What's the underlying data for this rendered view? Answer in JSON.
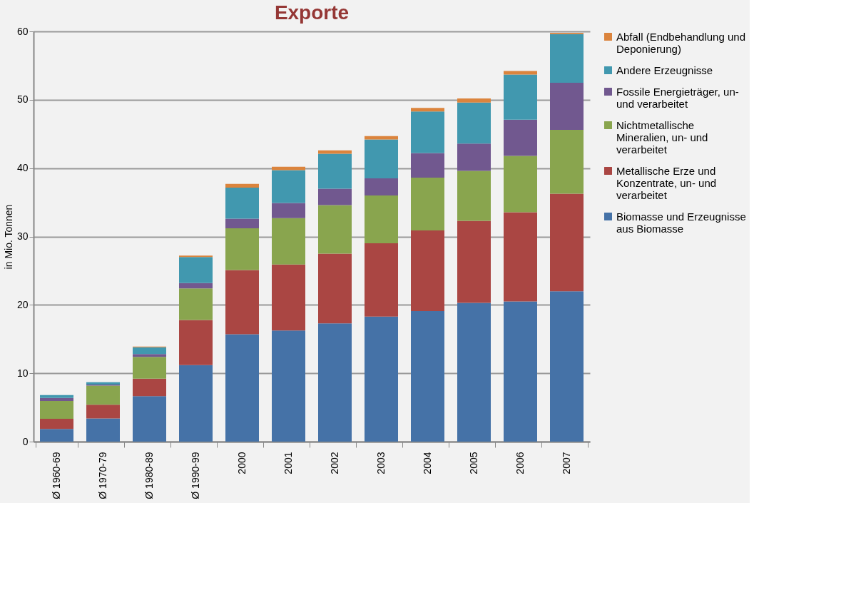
{
  "chart_data": {
    "type": "bar",
    "title": "Exporte",
    "ylabel": "in Mio. Tonnen",
    "stacked": true,
    "legend": "right",
    "grid": "y",
    "categories": [
      "Ø 1960-69",
      "Ø 1970-79",
      "Ø 1980-89",
      "Ø 1990-99",
      "2000",
      "2001",
      "2002",
      "2003",
      "2004",
      "2005",
      "2006",
      "2007"
    ],
    "ylim": [
      0,
      60
    ],
    "yticks": [
      0,
      10,
      20,
      30,
      40,
      50,
      60
    ],
    "series": [
      {
        "name": "Biomasse und Erzeugnisse aus Biomasse",
        "color": "#4572a7",
        "values": [
          1.85,
          3.4,
          6.65,
          11.2,
          15.7,
          16.25,
          17.3,
          18.3,
          19.1,
          20.3,
          20.5,
          22.0
        ]
      },
      {
        "name": "Metallische Erze und Konzentrate, un- und verarbeitet",
        "color": "#aa4643",
        "values": [
          1.5,
          2.0,
          2.55,
          6.6,
          9.4,
          9.65,
          10.2,
          10.7,
          11.8,
          12.0,
          13.05,
          14.25
        ]
      },
      {
        "name": "Nichtmetallische Mineralien, un- und verarbeitet",
        "color": "#89a54e",
        "values": [
          2.6,
          2.8,
          3.2,
          4.6,
          6.1,
          6.8,
          7.1,
          7.0,
          7.7,
          7.3,
          8.25,
          9.35
        ]
      },
      {
        "name": "Fossile Energieträger, un- und verarbeitet",
        "color": "#71588f",
        "values": [
          0.45,
          0.15,
          0.4,
          0.8,
          1.4,
          2.2,
          2.4,
          2.5,
          3.6,
          4.0,
          5.3,
          6.9
        ]
      },
      {
        "name": "Andere Erzeugnisse",
        "color": "#4198af",
        "values": [
          0.4,
          0.35,
          1.0,
          3.8,
          4.55,
          4.8,
          5.1,
          5.7,
          6.1,
          6.0,
          6.6,
          7.1
        ]
      },
      {
        "name": "Abfall (Endbehandlung und Deponierung)",
        "color": "#db843d",
        "values": [
          0.0,
          0.0,
          0.1,
          0.2,
          0.55,
          0.5,
          0.5,
          0.5,
          0.5,
          0.6,
          0.5,
          0.2
        ]
      }
    ]
  }
}
